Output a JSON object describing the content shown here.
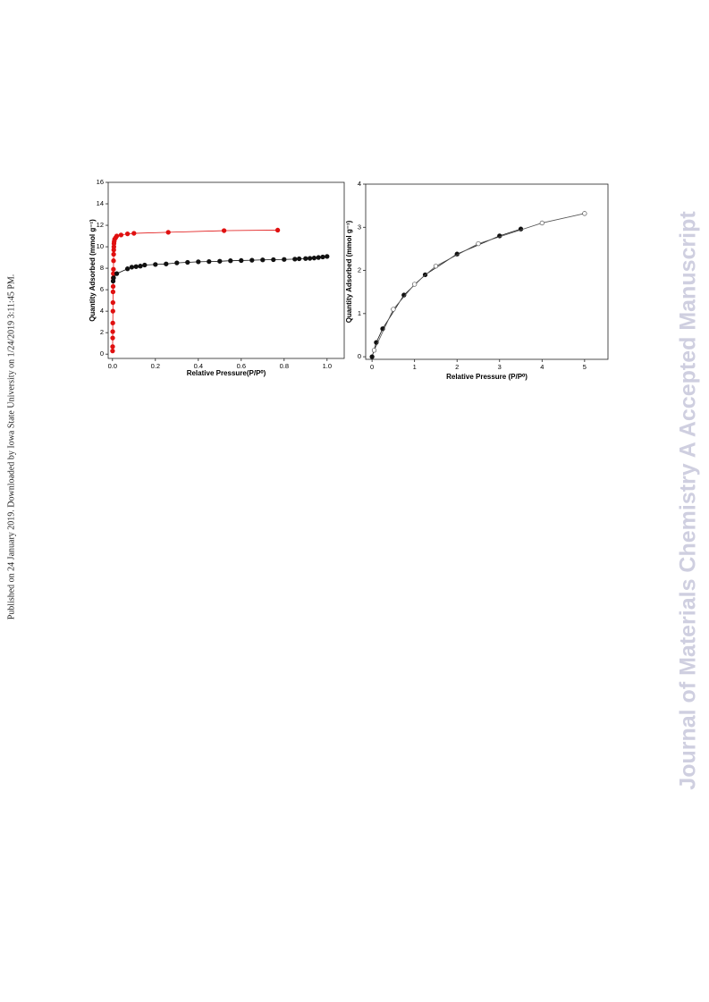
{
  "side_text": "Published on 24 January 2019. Downloaded by Iowa State University on 1/24/2019 3:11:45 PM.",
  "watermark": "Journal of Materials Chemistry A Accepted Manuscript",
  "chart_data": [
    {
      "type": "scatter",
      "x_label": "Relative Pressure(P/P⁰)",
      "y_label": "Quantity Adsorbed (mmol g⁻¹)",
      "xlim": [
        -0.02,
        1.08
      ],
      "ylim": [
        -0.4,
        16
      ],
      "xticks": [
        {
          "value": 0,
          "label": "0.0"
        },
        0.2,
        0.4,
        0.6,
        0.8,
        {
          "value": 1,
          "label": "1.0"
        }
      ],
      "yticks": [
        0,
        2,
        4,
        6,
        8,
        10,
        12,
        14,
        16
      ],
      "series": [
        {
          "color": "#e01010",
          "filled": true,
          "x": [
            0.0005,
            0.0008,
            0.001,
            0.0012,
            0.0015,
            0.002,
            0.0022,
            0.0025,
            0.003,
            0.0035,
            0.004,
            0.0045,
            0.005,
            0.0055,
            0.006,
            0.0065,
            0.007,
            0.008,
            0.01,
            0.015,
            0.02,
            0.04,
            0.07,
            0.1,
            0.26,
            0.52,
            0.77
          ],
          "values": [
            0.3,
            0.7,
            1.5,
            2.1,
            2.9,
            4.0,
            4.8,
            5.8,
            6.3,
            7.1,
            7.5,
            7.9,
            8.7,
            9.3,
            9.7,
            10.0,
            10.3,
            10.5,
            10.7,
            10.85,
            11.0,
            11.1,
            11.2,
            11.25,
            11.35,
            11.5,
            11.55
          ]
        },
        {
          "color": "#111111",
          "filled": true,
          "x": [
            0.003,
            0.005,
            0.02,
            0.07,
            0.09,
            0.11,
            0.13,
            0.15,
            0.2,
            0.25,
            0.3,
            0.35,
            0.4,
            0.45,
            0.5,
            0.55,
            0.6,
            0.65,
            0.7,
            0.75,
            0.8,
            0.85,
            0.87,
            0.9,
            0.92,
            0.94,
            0.96,
            0.98,
            1.0
          ],
          "values": [
            6.8,
            7.1,
            7.5,
            7.95,
            8.1,
            8.15,
            8.2,
            8.3,
            8.35,
            8.4,
            8.5,
            8.55,
            8.6,
            8.62,
            8.65,
            8.7,
            8.72,
            8.75,
            8.78,
            8.8,
            8.82,
            8.85,
            8.88,
            8.9,
            8.92,
            8.95,
            9.0,
            9.05,
            9.1
          ]
        }
      ]
    },
    {
      "type": "scatter",
      "x_label": "Relative Pressure (P/P⁰)",
      "y_label": "Quantity Adsorbed (mmol g⁻¹)",
      "xlim": [
        -0.15,
        5.55
      ],
      "ylim": [
        -0.06,
        4
      ],
      "xticks": [
        0,
        1,
        2,
        3,
        4,
        5
      ],
      "yticks": [
        0,
        1,
        2,
        3,
        4
      ],
      "series": [
        {
          "color": "#111111",
          "filled": true,
          "x": [
            0,
            0.1,
            0.25,
            0.75,
            1.25,
            2,
            3,
            3.5
          ],
          "values": [
            0,
            0.33,
            0.65,
            1.43,
            1.9,
            2.38,
            2.8,
            2.96
          ]
        },
        {
          "color": "#555555",
          "filled": false,
          "x": [
            0.05,
            0.5,
            1,
            1.5,
            2.5,
            4,
            5
          ],
          "values": [
            0.15,
            1.1,
            1.68,
            2.1,
            2.62,
            3.1,
            3.32
          ]
        }
      ]
    }
  ]
}
